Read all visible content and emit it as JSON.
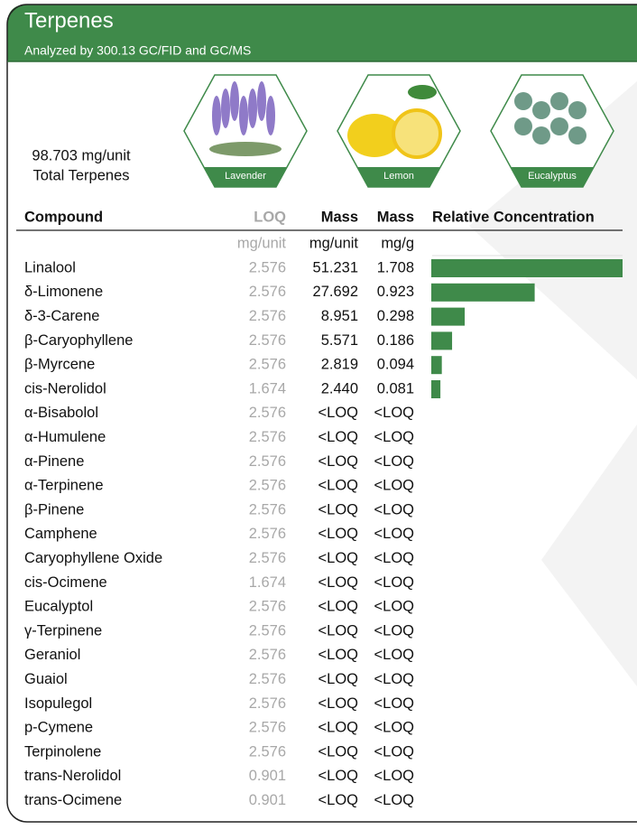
{
  "header": {
    "title": "Terpenes",
    "subtitle": "Analyzed by 300.13 GC/FID and GC/MS"
  },
  "total": {
    "value": "98.703 mg/unit",
    "label": "Total Terpenes"
  },
  "aromas": [
    "Lavender",
    "Lemon",
    "Eucalyptus"
  ],
  "table": {
    "columns": [
      "Compound",
      "LOQ",
      "Mass",
      "Mass",
      "Relative Concentration"
    ],
    "units": [
      "mg/unit",
      "mg/unit",
      "mg/g"
    ],
    "rows": [
      [
        "Linalool",
        "2.576",
        "51.231",
        "1.708"
      ],
      [
        "δ-Limonene",
        "2.576",
        "27.692",
        "0.923"
      ],
      [
        "δ-3-Carene",
        "2.576",
        "8.951",
        "0.298"
      ],
      [
        "β-Caryophyllene",
        "2.576",
        "5.571",
        "0.186"
      ],
      [
        "β-Myrcene",
        "2.576",
        "2.819",
        "0.094"
      ],
      [
        "cis-Nerolidol",
        "1.674",
        "2.440",
        "0.081"
      ],
      [
        "α-Bisabolol",
        "2.576",
        "<LOQ",
        "<LOQ"
      ],
      [
        "α-Humulene",
        "2.576",
        "<LOQ",
        "<LOQ"
      ],
      [
        "α-Pinene",
        "2.576",
        "<LOQ",
        "<LOQ"
      ],
      [
        "α-Terpinene",
        "2.576",
        "<LOQ",
        "<LOQ"
      ],
      [
        "β-Pinene",
        "2.576",
        "<LOQ",
        "<LOQ"
      ],
      [
        "Camphene",
        "2.576",
        "<LOQ",
        "<LOQ"
      ],
      [
        "Caryophyllene Oxide",
        "2.576",
        "<LOQ",
        "<LOQ"
      ],
      [
        "cis-Ocimene",
        "1.674",
        "<LOQ",
        "<LOQ"
      ],
      [
        "Eucalyptol",
        "2.576",
        "<LOQ",
        "<LOQ"
      ],
      [
        "γ-Terpinene",
        "2.576",
        "<LOQ",
        "<LOQ"
      ],
      [
        "Geraniol",
        "2.576",
        "<LOQ",
        "<LOQ"
      ],
      [
        "Guaiol",
        "2.576",
        "<LOQ",
        "<LOQ"
      ],
      [
        "Isopulegol",
        "2.576",
        "<LOQ",
        "<LOQ"
      ],
      [
        "p-Cymene",
        "2.576",
        "<LOQ",
        "<LOQ"
      ],
      [
        "Terpinolene",
        "2.576",
        "<LOQ",
        "<LOQ"
      ],
      [
        "trans-Nerolidol",
        "0.901",
        "<LOQ",
        "<LOQ"
      ],
      [
        "trans-Ocimene",
        "0.901",
        "<LOQ",
        "<LOQ"
      ]
    ]
  }
}
